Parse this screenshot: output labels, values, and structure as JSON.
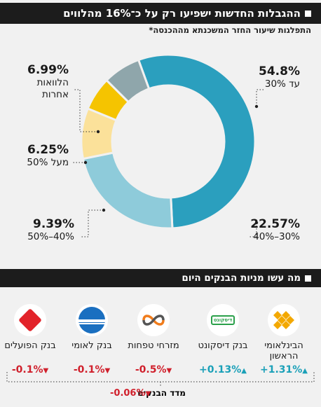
{
  "header": {
    "title": "ההגבלות החדשות ישפיעו רק על כ־16% מהלווים",
    "subtitle": "התפלגות שיעור החזר המשכנתא מההכנסה*"
  },
  "chart_data": {
    "type": "donut",
    "slices": [
      {
        "percent_label": "54.8%",
        "value": 54.8,
        "desc": "עד 30%",
        "color": "#2b9fbe"
      },
      {
        "percent_label": "22.57%",
        "value": 22.57,
        "desc": "30%–40%",
        "color": "#8ecbda"
      },
      {
        "percent_label": "9.39%",
        "value": 9.39,
        "desc": "40%–50%",
        "color": "#fbe19a"
      },
      {
        "percent_label": "6.25%",
        "value": 6.25,
        "desc": "מעל 50%",
        "color": "#f5c400"
      },
      {
        "percent_label": "6.99%",
        "value": 6.99,
        "desc": "הלוואות אחרות",
        "color": "#8fa6ab"
      }
    ]
  },
  "banks_header": {
    "title": "מה עשו מניות הבנקים היום"
  },
  "banks": [
    {
      "name": "הבינלאומי הראשון",
      "change": "+1.31%",
      "dir": "up",
      "logo": "intl-bank-icon"
    },
    {
      "name": "בנק דיסקונט",
      "change": "+0.13%",
      "dir": "up",
      "logo": "discount-bank-icon",
      "logo_text": "דיסקונט"
    },
    {
      "name": "מזרחי טפחות",
      "change": "-0.5%",
      "dir": "down",
      "logo": "mizrahi-bank-icon"
    },
    {
      "name": "בנק לאומי",
      "change": "-0.1%",
      "dir": "down",
      "logo": "leumi-bank-icon"
    },
    {
      "name": "בנק הפועלים",
      "change": "-0.1%",
      "dir": "down",
      "logo": "hapoalim-bank-icon"
    }
  ],
  "index": {
    "label": "מדד הבנקים",
    "change": "-0.06%",
    "dir": "down"
  },
  "colors": {
    "header_bg": "#1c1c1c",
    "up": "#1aa0b8",
    "down": "#d0202c"
  }
}
